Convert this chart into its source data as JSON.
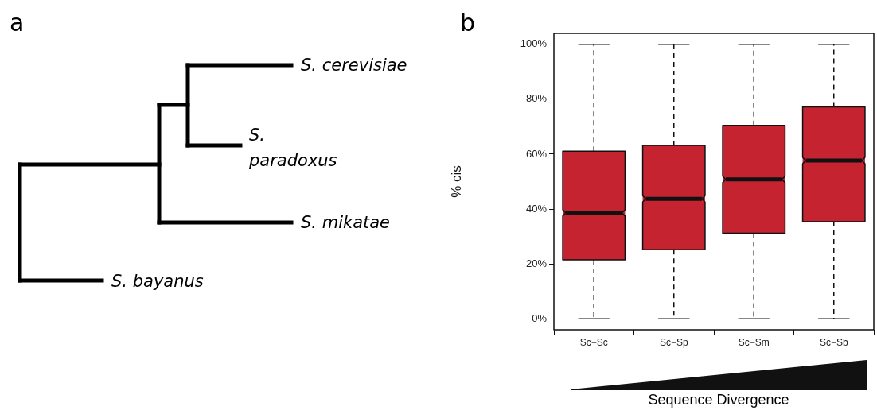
{
  "chart_data": [
    {
      "type": "other",
      "title": "a",
      "annotations": [
        "S. cerevisiae",
        "S. paradoxus",
        "S. mikatae",
        "S. bayanus"
      ]
    },
    {
      "type": "box",
      "title": "b",
      "xlabel": "Sequence Divergence",
      "ylabel": "% cis",
      "categories": [
        "Sc−Sc",
        "Sc−Sp",
        "Sc−Sm",
        "Sc−Sb"
      ],
      "color": "#c4232f",
      "boxes": [
        {
          "low": 0,
          "q1": 21.5,
          "median": 38.6,
          "q3": 61.1,
          "high": 100
        },
        {
          "low": 0,
          "q1": 25.2,
          "median": 43.7,
          "q3": 63.2,
          "high": 100
        },
        {
          "low": 0,
          "q1": 31.2,
          "median": 50.8,
          "q3": 70.5,
          "high": 100
        },
        {
          "low": 0,
          "q1": 35.4,
          "median": 57.7,
          "q3": 77.2,
          "high": 100
        }
      ],
      "ylim": [
        -4,
        104
      ],
      "yticks": [
        {
          "value": 0,
          "label": "0%"
        },
        {
          "value": 20,
          "label": "20%"
        },
        {
          "value": 40,
          "label": "40%"
        },
        {
          "value": 60,
          "label": "60%"
        },
        {
          "value": 80,
          "label": "80%"
        },
        {
          "value": 100,
          "label": "100%"
        }
      ]
    }
  ]
}
